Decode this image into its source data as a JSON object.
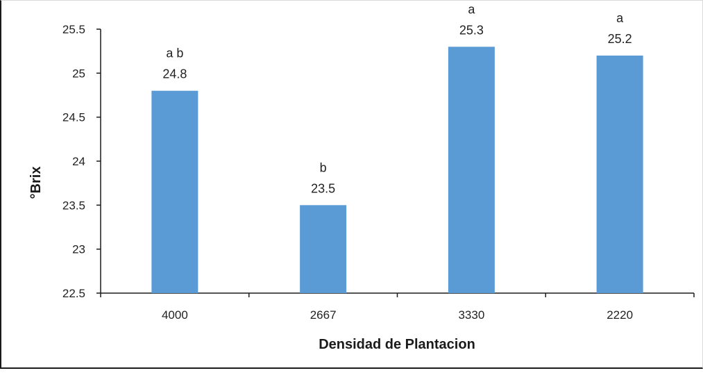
{
  "chart_data": {
    "type": "bar",
    "title": "",
    "xlabel": "Densidad de Plantacion",
    "ylabel": "°Brix",
    "categories": [
      "4000",
      "2667",
      "3330",
      "2220"
    ],
    "series": [
      {
        "values": [
          24.8,
          23.5,
          25.3,
          25.2
        ],
        "data_labels": [
          "24.8",
          "23.5",
          "25.3",
          "25.2"
        ],
        "group_letters": [
          "a b",
          "b",
          "a",
          "a"
        ],
        "color": "#5b9bd5"
      }
    ],
    "ylim": [
      22.5,
      25.5
    ],
    "yticks": [
      "25.5",
      "25",
      "24.5",
      "24",
      "23.5",
      "23",
      "22.5"
    ],
    "ytick_values": [
      25.5,
      25,
      24.5,
      24,
      23.5,
      23,
      22.5
    ],
    "grid": false,
    "legend": "none"
  }
}
